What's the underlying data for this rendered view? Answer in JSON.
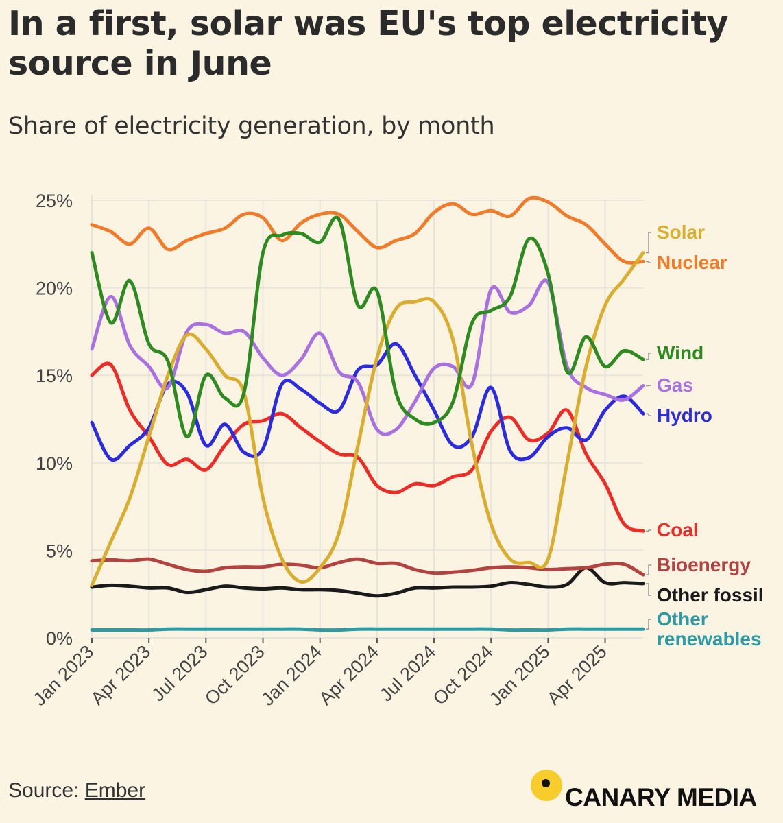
{
  "title": "In a first, solar was EU's top electricity source in June",
  "subtitle": "Share of electricity generation, by month",
  "source": {
    "prefix": "Source: ",
    "link_text": "Ember"
  },
  "brand": {
    "name": "CANARY MEDIA",
    "color": "#f6cd2a"
  },
  "chart_data": {
    "type": "line",
    "title": "In a first, solar was EU's top electricity source in June",
    "subtitle": "Share of electricity generation, by month",
    "x": [
      "Jan 2023",
      "Feb 2023",
      "Mar 2023",
      "Apr 2023",
      "May 2023",
      "Jun 2023",
      "Jul 2023",
      "Aug 2023",
      "Sep 2023",
      "Oct 2023",
      "Nov 2023",
      "Dec 2023",
      "Jan 2024",
      "Feb 2024",
      "Mar 2024",
      "Apr 2024",
      "May 2024",
      "Jun 2024",
      "Jul 2024",
      "Aug 2024",
      "Sep 2024",
      "Oct 2024",
      "Nov 2024",
      "Dec 2024",
      "Jan 2025",
      "Feb 2025",
      "Mar 2025",
      "Apr 2025",
      "May 2025",
      "Jun 2025"
    ],
    "x_ticks": [
      "Jan 2023",
      "Apr 2023",
      "Jul 2023",
      "Oct 2023",
      "Jan 2024",
      "Apr 2024",
      "Jul 2024",
      "Oct 2024",
      "Jan 2025",
      "Apr 2025"
    ],
    "y_ticks": [
      "0%",
      "5%",
      "10%",
      "15%",
      "20%",
      "25%"
    ],
    "ylim": [
      0,
      25
    ],
    "grid": true,
    "legend": "direct labels at right end of each line",
    "series": [
      {
        "name": "Solar",
        "color": "#d9ad2e",
        "values": [
          3,
          5.5,
          8,
          11.5,
          15,
          17.3,
          16.5,
          15,
          14,
          8,
          4.5,
          3.2,
          4,
          6,
          11,
          16,
          18.8,
          19.2,
          19.2,
          17,
          11,
          6.5,
          4.5,
          4.3,
          4.5,
          10,
          15.5,
          19,
          20.5,
          22
        ]
      },
      {
        "name": "Nuclear",
        "color": "#f07c2b",
        "values": [
          23.6,
          23.2,
          22.5,
          23.4,
          22.2,
          22.7,
          23.1,
          23.4,
          24.2,
          24,
          22.7,
          23.7,
          24.2,
          24.2,
          23.2,
          22.3,
          22.7,
          23.1,
          24.3,
          24.8,
          24.2,
          24.4,
          24.1,
          25.1,
          24.9,
          24.1,
          23.6,
          22.5,
          21.5,
          21.5
        ]
      },
      {
        "name": "Wind",
        "color": "#2e8b22",
        "values": [
          22,
          18,
          20.4,
          16.8,
          15.8,
          11.5,
          15,
          13.7,
          14,
          22,
          23,
          23.1,
          22.6,
          23.9,
          19,
          19.8,
          14,
          12.5,
          12.3,
          13.5,
          18,
          18.7,
          19.5,
          22.8,
          20.8,
          15.2,
          17.2,
          15.5,
          16.4,
          15.9
        ]
      },
      {
        "name": "Gas",
        "color": "#a970e0",
        "values": [
          16.5,
          19.5,
          16.7,
          15.5,
          14.3,
          17.5,
          17.9,
          17.4,
          17.5,
          16,
          15,
          15.9,
          17.4,
          15.2,
          14.6,
          11.9,
          11.9,
          13.5,
          15.4,
          15.5,
          14.5,
          19.9,
          18.6,
          19,
          20.3,
          15.5,
          14.3,
          13.9,
          13.6,
          14.4
        ]
      },
      {
        "name": "Hydro",
        "color": "#2b2be0",
        "values": [
          12.3,
          10.2,
          11,
          12,
          14.5,
          14,
          11,
          12.2,
          10.6,
          10.8,
          14.5,
          14.2,
          13.4,
          13,
          15.3,
          15.6,
          16.8,
          15,
          13,
          11,
          11.5,
          14.3,
          10.7,
          10.3,
          11.5,
          12,
          11.3,
          13,
          13.8,
          12.8
        ]
      },
      {
        "name": "Coal",
        "color": "#ee2c27",
        "values": [
          15,
          15.6,
          13,
          11.5,
          9.9,
          10.2,
          9.6,
          11,
          12.2,
          12.4,
          12.8,
          12,
          11.2,
          10.5,
          10.3,
          8.7,
          8.3,
          8.8,
          8.7,
          9.2,
          9.6,
          11.8,
          12.6,
          11.3,
          11.7,
          13,
          10.5,
          8.8,
          6.5,
          6.1
        ]
      },
      {
        "name": "Bioenergy",
        "color": "#b24340",
        "values": [
          4.4,
          4.45,
          4.4,
          4.5,
          4.2,
          3.9,
          3.8,
          4,
          4.05,
          4.05,
          4.2,
          4.15,
          4,
          4.3,
          4.5,
          4.25,
          4.25,
          3.9,
          3.7,
          3.75,
          3.85,
          4,
          4.05,
          4,
          3.9,
          3.95,
          4,
          4.2,
          4.2,
          3.6
        ]
      },
      {
        "name": "Other fossil",
        "color": "#1a1a1a",
        "values": [
          2.9,
          3.0,
          2.95,
          2.85,
          2.85,
          2.6,
          2.75,
          2.95,
          2.85,
          2.8,
          2.85,
          2.75,
          2.75,
          2.7,
          2.55,
          2.4,
          2.55,
          2.85,
          2.85,
          2.9,
          2.9,
          2.95,
          3.15,
          3.05,
          2.9,
          3.05,
          4.0,
          3.15,
          3.15,
          3.1
        ]
      },
      {
        "name": "Other renewables",
        "color": "#2e9aa3",
        "values": [
          0.45,
          0.45,
          0.45,
          0.45,
          0.5,
          0.5,
          0.5,
          0.5,
          0.5,
          0.5,
          0.5,
          0.5,
          0.45,
          0.45,
          0.5,
          0.5,
          0.5,
          0.5,
          0.5,
          0.5,
          0.5,
          0.5,
          0.45,
          0.45,
          0.45,
          0.5,
          0.5,
          0.5,
          0.5,
          0.5
        ]
      }
    ],
    "labels": [
      {
        "series": "Solar",
        "text": "Solar"
      },
      {
        "series": "Nuclear",
        "text": "Nuclear"
      },
      {
        "series": "Wind",
        "text": "Wind"
      },
      {
        "series": "Gas",
        "text": "Gas"
      },
      {
        "series": "Hydro",
        "text": "Hydro"
      },
      {
        "series": "Coal",
        "text": "Coal"
      },
      {
        "series": "Bioenergy",
        "text": "Bioenergy"
      },
      {
        "series": "Other fossil",
        "text": "Other fossil"
      },
      {
        "series": "Other renewables",
        "text": "Other",
        "text2": "renewables"
      }
    ]
  }
}
